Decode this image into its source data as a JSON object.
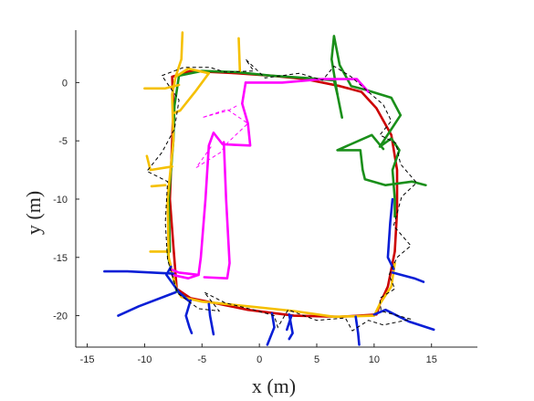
{
  "chart_data": {
    "type": "line",
    "title": "",
    "xlabel": "x (m)",
    "ylabel": "y (m)",
    "xlim": [
      -16,
      19
    ],
    "ylim": [
      -22.7,
      4.5
    ],
    "xticks": [
      -15,
      -10,
      -5,
      0,
      5,
      10,
      15
    ],
    "yticks": [
      0,
      -5,
      -10,
      -15,
      -20
    ],
    "xtick_labels": [
      "-15",
      "-10",
      "-5",
      "0",
      "5",
      "10",
      "15"
    ],
    "ytick_labels": [
      "0",
      "-5",
      "-10",
      "-15",
      "-20"
    ],
    "grid": false,
    "legend": false,
    "colors": {
      "red": "#cc0000",
      "green": "#1a8f1a",
      "yellow": "#f5c000",
      "magenta": "#ff00ff",
      "blue": "#0a1fd6",
      "dashed": "#000000"
    },
    "series": [
      {
        "color": "red",
        "style": "solid",
        "points": [
          [
            -7.6,
            0.5
          ],
          [
            -6,
            1.0
          ],
          [
            -2,
            0.8
          ],
          [
            1,
            0.6
          ],
          [
            4,
            0.3
          ],
          [
            7,
            -0.3
          ],
          [
            8.9,
            -0.8
          ],
          [
            10.2,
            -2.2
          ],
          [
            11.5,
            -4.5
          ],
          [
            12.0,
            -7.5
          ],
          [
            12.0,
            -11
          ],
          [
            11.8,
            -14.5
          ],
          [
            11.2,
            -17.5
          ],
          [
            10.5,
            -19.0
          ],
          [
            10.2,
            -19.9
          ],
          [
            7,
            -20.1
          ],
          [
            3,
            -20.0
          ],
          [
            -1,
            -19.5
          ],
          [
            -4,
            -18.9
          ],
          [
            -6,
            -18.5
          ],
          [
            -7.2,
            -17.7
          ],
          [
            -7.5,
            -14
          ],
          [
            -7.8,
            -10
          ],
          [
            -7.6,
            -5
          ],
          [
            -7.5,
            -2
          ],
          [
            -7.6,
            0.5
          ]
        ]
      },
      {
        "color": "green",
        "style": "solid",
        "points": [
          [
            -7.8,
            -14.5
          ],
          [
            -7.9,
            -10
          ],
          [
            -7.5,
            -5
          ],
          [
            -7.4,
            -2
          ],
          [
            -7.0,
            0.6
          ],
          [
            -5,
            1.0
          ],
          [
            -2,
            0.9
          ],
          [
            1,
            0.6
          ],
          [
            4,
            0.4
          ],
          [
            6.5,
            0.2
          ],
          [
            6.8,
            -1.0
          ],
          [
            7.2,
            -3.0
          ]
        ]
      },
      {
        "color": "green",
        "style": "solid",
        "points": [
          [
            6.8,
            -1.0
          ],
          [
            6.3,
            2.0
          ],
          [
            6.5,
            4.0
          ],
          [
            7.0,
            1.5
          ],
          [
            8.0,
            -0.3
          ],
          [
            9.2,
            -0.6
          ],
          [
            11.5,
            -1.3
          ],
          [
            12.3,
            -2.8
          ],
          [
            10.5,
            -5.5
          ],
          [
            11.5,
            -4.8
          ],
          [
            12.2,
            -5.8
          ],
          [
            11.6,
            -7.5
          ],
          [
            11.8,
            -10
          ],
          [
            11.8,
            -11.5
          ]
        ]
      },
      {
        "color": "green",
        "style": "solid",
        "points": [
          [
            10.8,
            -5.7
          ],
          [
            9.8,
            -4.5
          ],
          [
            6.8,
            -5.8
          ],
          [
            8.8,
            -5.8
          ],
          [
            9.0,
            -7.5
          ],
          [
            9.2,
            -8.3
          ],
          [
            11.0,
            -8.8
          ],
          [
            13.3,
            -8.5
          ],
          [
            14.5,
            -8.8
          ]
        ]
      },
      {
        "color": "green",
        "style": "solid",
        "points": [
          [
            -8.0,
            -14.3
          ],
          [
            -7.9,
            -15.2
          ],
          [
            -7.2,
            -17.9
          ],
          [
            -6.2,
            -18.6
          ]
        ]
      },
      {
        "color": "yellow",
        "style": "solid",
        "points": [
          [
            -6.7,
            4.3
          ],
          [
            -6.8,
            2.0
          ],
          [
            -7.3,
            0.5
          ],
          [
            -7.6,
            -1.0
          ],
          [
            -7.5,
            -5
          ],
          [
            -8.0,
            -10
          ],
          [
            -7.9,
            -15
          ],
          [
            -7.3,
            -17.5
          ],
          [
            -6.8,
            -18.4
          ],
          [
            -5,
            -18.8
          ],
          [
            -1,
            -19.2
          ],
          [
            3,
            -19.6
          ],
          [
            6.5,
            -20.1
          ],
          [
            10.0,
            -20.0
          ],
          [
            10.5,
            -19.0
          ],
          [
            11.5,
            -17.5
          ],
          [
            11.8,
            -15.5
          ]
        ]
      },
      {
        "color": "yellow",
        "style": "solid",
        "points": [
          [
            -7.3,
            0.5
          ],
          [
            -6.2,
            1.2
          ],
          [
            -4.4,
            0.8
          ],
          [
            -5.6,
            -0.8
          ],
          [
            -6.9,
            -2.4
          ],
          [
            -7.4,
            -2.6
          ]
        ]
      },
      {
        "color": "yellow",
        "style": "solid",
        "points": [
          [
            -1.8,
            3.8
          ],
          [
            -1.7,
            1.0
          ]
        ]
      },
      {
        "color": "yellow",
        "style": "solid",
        "points": [
          [
            -7.0,
            -0.2
          ],
          [
            -8.2,
            -0.5
          ],
          [
            -10.0,
            -0.5
          ]
        ]
      },
      {
        "color": "yellow",
        "style": "solid",
        "points": [
          [
            -7.6,
            -7.2
          ],
          [
            -9.5,
            -7.5
          ],
          [
            -9.8,
            -6.3
          ]
        ]
      },
      {
        "color": "yellow",
        "style": "solid",
        "points": [
          [
            -8.2,
            -8.8
          ],
          [
            -9.4,
            -8.9
          ]
        ]
      },
      {
        "color": "yellow",
        "style": "solid",
        "points": [
          [
            -7.9,
            -14.5
          ],
          [
            -9.5,
            -14.5
          ]
        ]
      },
      {
        "color": "magenta",
        "style": "solid",
        "points": [
          [
            -1.2,
            0.0
          ],
          [
            2.0,
            0.0
          ],
          [
            5.5,
            0.3
          ],
          [
            8.5,
            0.3
          ],
          [
            9.5,
            -0.8
          ]
        ]
      },
      {
        "color": "magenta",
        "style": "solid",
        "points": [
          [
            -1.2,
            0.0
          ],
          [
            -1.5,
            -1.8
          ],
          [
            -1.0,
            -3.5
          ],
          [
            -0.8,
            -5.4
          ],
          [
            -3.2,
            -5.3
          ],
          [
            -4.0,
            -4.3
          ],
          [
            -4.4,
            -5.4
          ],
          [
            -4.7,
            -10
          ],
          [
            -5.1,
            -15
          ],
          [
            -5.3,
            -16.5
          ],
          [
            -7.0,
            -16.3
          ],
          [
            -7.8,
            -16.0
          ]
        ]
      },
      {
        "color": "magenta",
        "style": "solid",
        "points": [
          [
            -5.3,
            -16.5
          ],
          [
            -6.2,
            -16.8
          ],
          [
            -7.6,
            -16.5
          ]
        ]
      },
      {
        "color": "magenta",
        "style": "solid",
        "points": [
          [
            -3.1,
            -5.1
          ],
          [
            -2.9,
            -10
          ],
          [
            -2.6,
            -15.5
          ],
          [
            -2.8,
            -16.8
          ],
          [
            -4.8,
            -16.7
          ]
        ]
      },
      {
        "color": "magenta",
        "style": "dashed",
        "points": [
          [
            -4.2,
            -5.5
          ],
          [
            -5.5,
            -7.3
          ],
          [
            -3.4,
            -6.0
          ],
          [
            -2.8,
            -5.2
          ],
          [
            -1.0,
            -3.5
          ],
          [
            -2.8,
            -2.3
          ],
          [
            -5.0,
            -3.0
          ],
          [
            -2.7,
            -2.4
          ],
          [
            -1.8,
            -1.9
          ]
        ]
      },
      {
        "color": "blue",
        "style": "solid",
        "points": [
          [
            -7.7,
            -15.8
          ],
          [
            -8.1,
            -16.5
          ],
          [
            -7.0,
            -18.0
          ],
          [
            -6.2,
            -18.7
          ]
        ]
      },
      {
        "color": "blue",
        "style": "solid",
        "points": [
          [
            -7.5,
            -16.4
          ],
          [
            -11.5,
            -16.2
          ],
          [
            -13.5,
            -16.2
          ]
        ]
      },
      {
        "color": "blue",
        "style": "solid",
        "points": [
          [
            -7.3,
            -18.0
          ],
          [
            -10.5,
            -19.2
          ],
          [
            -12.3,
            -20.0
          ]
        ]
      },
      {
        "color": "blue",
        "style": "solid",
        "points": [
          [
            -6.0,
            -18.7
          ],
          [
            -6.4,
            -20.0
          ],
          [
            -6.1,
            -21.0
          ],
          [
            -5.9,
            -21.5
          ]
        ]
      },
      {
        "color": "blue",
        "style": "solid",
        "points": [
          [
            -4.4,
            -19.0
          ],
          [
            -4.3,
            -20.0
          ],
          [
            -4.0,
            -21.6
          ]
        ]
      },
      {
        "color": "blue",
        "style": "solid",
        "points": [
          [
            1.1,
            -19.8
          ],
          [
            1.3,
            -21.0
          ],
          [
            0.7,
            -22.5
          ]
        ]
      },
      {
        "color": "blue",
        "style": "solid",
        "points": [
          [
            2.6,
            -19.9
          ],
          [
            2.9,
            -21.5
          ],
          [
            2.6,
            -22.0
          ]
        ]
      },
      {
        "color": "blue",
        "style": "solid",
        "points": [
          [
            2.8,
            -20.0
          ],
          [
            2.4,
            -21.2
          ]
        ]
      },
      {
        "color": "blue",
        "style": "solid",
        "points": [
          [
            8.4,
            -20.1
          ],
          [
            8.6,
            -21.5
          ],
          [
            8.7,
            -22.5
          ]
        ]
      },
      {
        "color": "blue",
        "style": "solid",
        "points": [
          [
            10.0,
            -19.9
          ],
          [
            11.0,
            -19.5
          ],
          [
            13.0,
            -20.5
          ],
          [
            15.2,
            -21.2
          ]
        ]
      },
      {
        "color": "blue",
        "style": "solid",
        "points": [
          [
            11.6,
            -16.3
          ],
          [
            13.5,
            -16.8
          ],
          [
            14.3,
            -17.1
          ]
        ]
      },
      {
        "color": "blue",
        "style": "solid",
        "points": [
          [
            11.7,
            -16.0
          ],
          [
            11.2,
            -15.0
          ],
          [
            11.4,
            -12.0
          ],
          [
            11.6,
            -10.0
          ]
        ]
      },
      {
        "color": "dashed",
        "style": "dashed",
        "points": [
          [
            -7.2,
            -17.8
          ],
          [
            -8.0,
            -15.2
          ],
          [
            -8.2,
            -12
          ],
          [
            -8.0,
            -8.5
          ],
          [
            -9.8,
            -7.6
          ],
          [
            -8.5,
            -6.0
          ],
          [
            -7.4,
            -4.0
          ],
          [
            -7.0,
            -1.5
          ],
          [
            -8.5,
            0.6
          ],
          [
            -6.6,
            1.3
          ],
          [
            -4.3,
            1.3
          ],
          [
            -3.0,
            0.9
          ],
          [
            -0.5,
            1.0
          ],
          [
            -1.2,
            2.0
          ],
          [
            0.5,
            0.4
          ],
          [
            3.5,
            0.8
          ],
          [
            5.5,
            0.2
          ],
          [
            6.5,
            1.4
          ],
          [
            8.0,
            0.5
          ],
          [
            9.5,
            -0.8
          ],
          [
            10.8,
            -1.9
          ],
          [
            11.5,
            -3.3
          ],
          [
            10.5,
            -4.5
          ],
          [
            11.9,
            -5.2
          ],
          [
            12.3,
            -7.0
          ],
          [
            13.7,
            -8.6
          ],
          [
            12.4,
            -9.8
          ],
          [
            11.7,
            -12.3
          ],
          [
            13.2,
            -14.0
          ],
          [
            12.0,
            -15.0
          ],
          [
            11.3,
            -16.5
          ],
          [
            11.8,
            -17.7
          ],
          [
            10.5,
            -18.5
          ],
          [
            10.6,
            -19.6
          ],
          [
            13.2,
            -20.3
          ],
          [
            10.8,
            -20.8
          ],
          [
            9.5,
            -20.4
          ],
          [
            8.1,
            -21.3
          ],
          [
            7.5,
            -20.2
          ],
          [
            5.0,
            -20.4
          ],
          [
            2.5,
            -19.5
          ],
          [
            1.6,
            -21.0
          ],
          [
            1.3,
            -20.0
          ],
          [
            -0.5,
            -19.5
          ],
          [
            -3.0,
            -18.9
          ],
          [
            -4.8,
            -18.0
          ],
          [
            -3.5,
            -19.6
          ],
          [
            -5.3,
            -19.4
          ],
          [
            -7.1,
            -18.1
          ],
          [
            -7.2,
            -17.8
          ]
        ]
      }
    ]
  }
}
